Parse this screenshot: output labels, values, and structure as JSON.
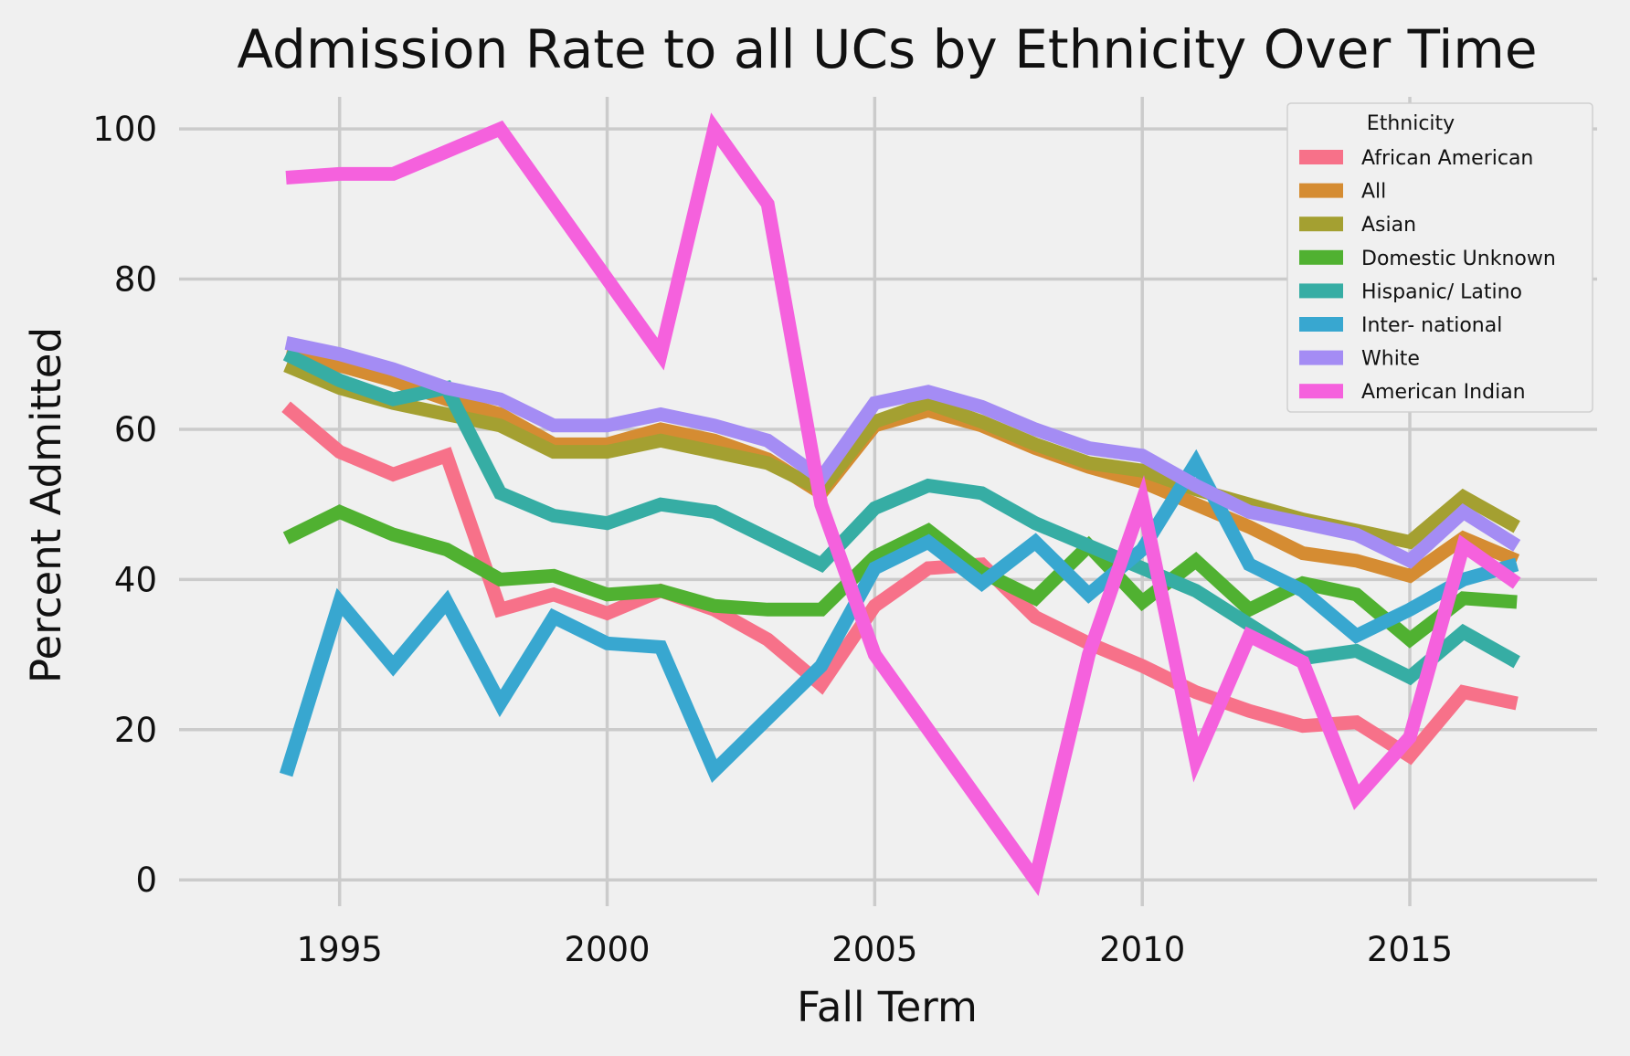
{
  "chart_data": {
    "type": "line",
    "title": "Admission Rate to all UCs by Ethnicity Over Time",
    "xlabel": "Fall Term",
    "ylabel": "Percent Admitted",
    "xlim": [
      1992,
      2018.5
    ],
    "ylim": [
      -3.5,
      105
    ],
    "xticks": [
      1995,
      2000,
      2005,
      2010,
      2015
    ],
    "yticks": [
      0,
      20,
      40,
      60,
      80,
      100
    ],
    "grid": true,
    "legend": {
      "title": "Ethnicity",
      "position": "top-right"
    },
    "x": [
      1994,
      1995,
      1996,
      1997,
      1998,
      1999,
      2000,
      2001,
      2002,
      2003,
      2004,
      2005,
      2006,
      2007,
      2008,
      2009,
      2010,
      2011,
      2012,
      2013,
      2014,
      2015,
      2016,
      2017
    ],
    "series": [
      {
        "name": "African American",
        "color": "#f77189",
        "values": [
          63,
          57,
          54,
          56.5,
          36,
          38,
          35.5,
          38.5,
          36,
          32,
          26,
          36.5,
          41.5,
          42,
          35,
          31.5,
          28.5,
          25,
          22.5,
          20.5,
          21,
          16.5,
          25,
          23.5
        ]
      },
      {
        "name": "All",
        "color": "#d58c32",
        "values": [
          70,
          68.5,
          66.5,
          64,
          62,
          58,
          58,
          60,
          58.5,
          56,
          51.5,
          60.5,
          62.5,
          60.5,
          57.5,
          55,
          53,
          50,
          47,
          43.5,
          42.5,
          40.5,
          45.5,
          42.5
        ]
      },
      {
        "name": "Asian",
        "color": "#a4a031",
        "values": [
          68.5,
          65.5,
          63.5,
          62,
          60.5,
          57,
          57,
          58.5,
          57,
          55.5,
          52,
          61,
          63.5,
          61,
          58,
          55.5,
          54.5,
          52,
          50,
          48,
          46.5,
          45,
          51,
          47
        ]
      },
      {
        "name": "Domestic Unknown",
        "color": "#50b131",
        "values": [
          45.5,
          49,
          46,
          44,
          40,
          40.5,
          38,
          38.5,
          36.5,
          36,
          36,
          43,
          46.5,
          41,
          37.5,
          44.5,
          37,
          42.5,
          36,
          39.5,
          38,
          32,
          37.5,
          37
        ]
      },
      {
        "name": "Hispanic/ Latino",
        "color": "#36ada4",
        "values": [
          70,
          66.5,
          64,
          65.5,
          51.5,
          48.5,
          47.5,
          50,
          49,
          45.5,
          42,
          49.5,
          52.5,
          51.5,
          47.5,
          44.5,
          41.5,
          38.5,
          34,
          29.5,
          30.5,
          27,
          33,
          29
        ]
      },
      {
        "name": "Inter- national",
        "color": "#38a7d0",
        "values": [
          14,
          37,
          28.5,
          37,
          23.5,
          35,
          31.5,
          31,
          14.5,
          21.5,
          28.5,
          41.5,
          45,
          39.5,
          45,
          38,
          44,
          55.5,
          42,
          38.5,
          32.5,
          36,
          40,
          42
        ]
      },
      {
        "name": "White",
        "color": "#a48cf4",
        "values": [
          71.5,
          70,
          68,
          65.5,
          64,
          60.5,
          60.5,
          62,
          60.5,
          58.5,
          53.5,
          63.5,
          65,
          63,
          60,
          57.5,
          56.5,
          52.5,
          49,
          47.5,
          46,
          42.5,
          49,
          44.5
        ]
      },
      {
        "name": "American Indian",
        "color": "#f561dd",
        "values": [
          93.5,
          94,
          94,
          97,
          100,
          90,
          80,
          70,
          100,
          90,
          50,
          30,
          20,
          10,
          0,
          30,
          50.5,
          16,
          32.5,
          29,
          11,
          19,
          44.5,
          39.5
        ]
      }
    ]
  }
}
